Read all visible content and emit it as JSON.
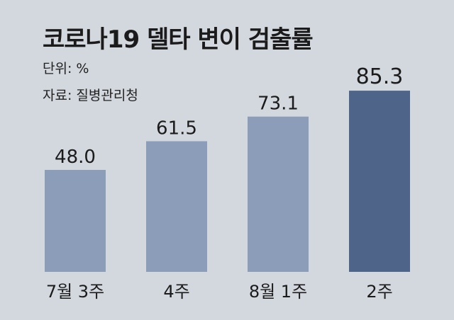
{
  "chart_data": {
    "type": "bar",
    "title": "코로나19 델타 변이 검출률",
    "unit_label": "단위: %",
    "source_label": "자료: 질병관리청",
    "categories": [
      "7월 3주",
      "4주",
      "8월 1주",
      "2주"
    ],
    "values": [
      48.0,
      61.5,
      73.1,
      85.3
    ],
    "value_labels": [
      "48.0",
      "61.5",
      "73.1",
      "85.3"
    ],
    "bar_colors": [
      "#8b9db9",
      "#8b9db9",
      "#8b9db9",
      "#4f6489"
    ],
    "ylim": [
      0,
      100
    ],
    "grid": false,
    "legend": "none"
  }
}
